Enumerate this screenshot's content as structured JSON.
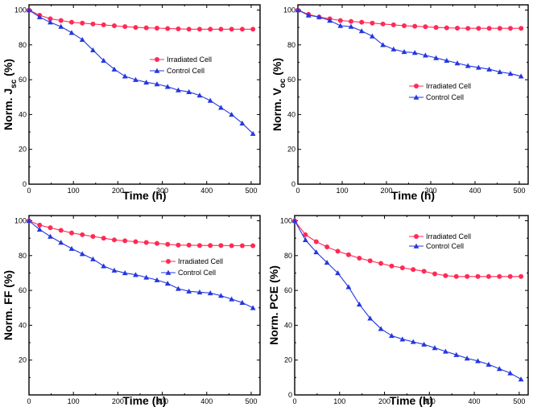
{
  "figure": {
    "panels_count": 4,
    "colors": {
      "irradiated": "#ff2a55",
      "control": "#2437e0",
      "frame": "#000000"
    }
  },
  "chart_data": [
    {
      "type": "line",
      "id": "jsc",
      "title": "",
      "xlabel": "Time (h)",
      "ylabel_main": "Norm. J",
      "ylabel_sub": "sc",
      "ylabel_unit": " (%)",
      "xlim": [
        0,
        520
      ],
      "ylim": [
        0,
        103
      ],
      "xticks": [
        0,
        100,
        200,
        300,
        400,
        500
      ],
      "yticks": [
        0,
        20,
        40,
        60,
        80,
        100
      ],
      "legend": [
        "Irradiated Cell",
        "Control Cell"
      ],
      "legend_position": "center-right",
      "series": [
        {
          "name": "Irradiated Cell",
          "marker": "circle",
          "x": [
            0,
            24,
            48,
            72,
            96,
            120,
            144,
            168,
            192,
            216,
            240,
            264,
            288,
            312,
            336,
            360,
            384,
            408,
            432,
            456,
            480,
            504
          ],
          "values": [
            100,
            97,
            95,
            94,
            93,
            92.5,
            92,
            91.5,
            91,
            90.5,
            90,
            89.8,
            89.6,
            89.4,
            89.2,
            89,
            89,
            89,
            89,
            89,
            89,
            89
          ]
        },
        {
          "name": "Control Cell",
          "marker": "triangle",
          "x": [
            0,
            24,
            48,
            72,
            96,
            120,
            144,
            168,
            192,
            216,
            240,
            264,
            288,
            312,
            336,
            360,
            384,
            408,
            432,
            456,
            480,
            504
          ],
          "values": [
            100,
            96,
            93,
            90.5,
            87,
            83,
            77,
            71,
            66,
            62,
            60,
            58.5,
            57.5,
            56,
            54,
            53,
            51,
            48,
            44,
            40,
            35,
            29
          ]
        }
      ]
    },
    {
      "type": "line",
      "id": "voc",
      "title": "",
      "xlabel": "Time (h)",
      "ylabel_main": "Norm. V",
      "ylabel_sub": "oc",
      "ylabel_unit": " (%)",
      "xlim": [
        0,
        520
      ],
      "ylim": [
        0,
        103
      ],
      "xticks": [
        0,
        100,
        200,
        300,
        400,
        500
      ],
      "yticks": [
        0,
        20,
        40,
        60,
        80,
        100
      ],
      "legend": [
        "Irradiated Cell",
        "Control Cell"
      ],
      "legend_position": "center-right",
      "series": [
        {
          "name": "Irradiated Cell",
          "marker": "circle",
          "x": [
            0,
            24,
            48,
            72,
            96,
            120,
            144,
            168,
            192,
            216,
            240,
            264,
            288,
            312,
            336,
            360,
            384,
            408,
            432,
            456,
            480,
            504
          ],
          "values": [
            100,
            97.5,
            96,
            95,
            94,
            93.5,
            93,
            92.5,
            92,
            91.5,
            91,
            90.7,
            90.4,
            90,
            89.8,
            89.6,
            89.5,
            89.5,
            89.5,
            89.5,
            89.5,
            89.5
          ]
        },
        {
          "name": "Control Cell",
          "marker": "triangle",
          "x": [
            0,
            24,
            48,
            72,
            96,
            120,
            144,
            168,
            192,
            216,
            240,
            264,
            288,
            312,
            336,
            360,
            384,
            408,
            432,
            456,
            480,
            504
          ],
          "values": [
            100,
            97,
            96,
            94,
            91,
            90.5,
            88,
            85,
            80,
            77.5,
            76,
            75.5,
            74,
            72.5,
            71,
            69.5,
            68,
            67,
            66,
            64.5,
            63.5,
            62
          ]
        }
      ]
    },
    {
      "type": "line",
      "id": "ff",
      "title": "",
      "xlabel": "Time (h)",
      "ylabel_main": "Norm. FF",
      "ylabel_sub": "",
      "ylabel_unit": " (%)",
      "xlim": [
        0,
        520
      ],
      "ylim": [
        0,
        103
      ],
      "xticks": [
        0,
        100,
        200,
        300,
        400,
        500
      ],
      "yticks": [
        20,
        40,
        60,
        80,
        100
      ],
      "legend": [
        "Irradiated Cell",
        "Control Cell"
      ],
      "legend_position": "center-right",
      "series": [
        {
          "name": "Irradiated Cell",
          "marker": "circle",
          "x": [
            0,
            24,
            48,
            72,
            96,
            120,
            144,
            168,
            192,
            216,
            240,
            264,
            288,
            312,
            336,
            360,
            384,
            408,
            432,
            456,
            480,
            504
          ],
          "values": [
            100,
            97.5,
            96,
            94.5,
            93,
            92,
            91,
            90,
            89,
            88.5,
            88,
            87.5,
            87,
            86.5,
            86,
            86,
            85.8,
            85.8,
            85.8,
            85.7,
            85.7,
            85.7
          ]
        },
        {
          "name": "Control Cell",
          "marker": "triangle",
          "x": [
            0,
            24,
            48,
            72,
            96,
            120,
            144,
            168,
            192,
            216,
            240,
            264,
            288,
            312,
            336,
            360,
            384,
            408,
            432,
            456,
            480,
            504
          ],
          "values": [
            100,
            95,
            91,
            87.5,
            84,
            81,
            78,
            74,
            71.5,
            70,
            69,
            67.5,
            66,
            64,
            61,
            59.5,
            59,
            58.5,
            57,
            55,
            53,
            50
          ]
        }
      ]
    },
    {
      "type": "line",
      "id": "pce",
      "title": "",
      "xlabel": "Time (h)",
      "ylabel_main": "Norm. PCE",
      "ylabel_sub": "",
      "ylabel_unit": " (%)",
      "xlim": [
        0,
        520
      ],
      "ylim": [
        0,
        103
      ],
      "xticks": [
        0,
        100,
        200,
        300,
        400,
        500
      ],
      "yticks": [
        0,
        20,
        40,
        60,
        80,
        100
      ],
      "legend": [
        "Irradiated Cell",
        "Control Cell"
      ],
      "legend_position": "top-right",
      "series": [
        {
          "name": "Irradiated Cell",
          "marker": "circle",
          "x": [
            0,
            24,
            48,
            72,
            96,
            120,
            144,
            168,
            192,
            216,
            240,
            264,
            288,
            312,
            336,
            360,
            384,
            408,
            432,
            456,
            480,
            504
          ],
          "values": [
            100,
            92,
            88,
            85,
            82.5,
            80.5,
            78.5,
            77,
            75.5,
            74,
            73,
            72,
            71,
            69.5,
            68.5,
            68,
            68,
            68,
            68,
            68,
            68,
            68
          ]
        },
        {
          "name": "Control Cell",
          "marker": "triangle",
          "x": [
            0,
            24,
            48,
            72,
            96,
            120,
            144,
            168,
            192,
            216,
            240,
            264,
            288,
            312,
            336,
            360,
            384,
            408,
            432,
            456,
            480,
            504
          ],
          "values": [
            100,
            89,
            82,
            76,
            70,
            62,
            52,
            44,
            38,
            34,
            32,
            30.5,
            29,
            27,
            25,
            23,
            21,
            19.5,
            17.5,
            15,
            12.5,
            9
          ]
        }
      ]
    }
  ]
}
